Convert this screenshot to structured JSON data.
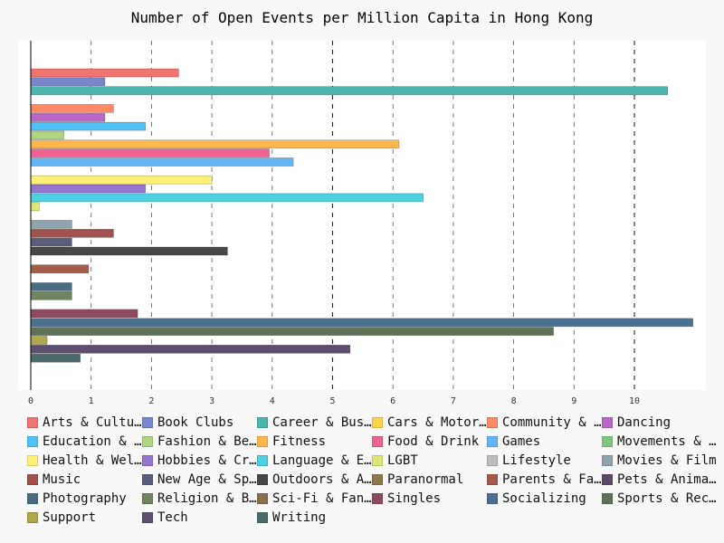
{
  "chart_data": {
    "type": "bar",
    "orientation": "horizontal",
    "title": "Number of Open Events per Million Capita in Hong Kong",
    "xlabel": "",
    "ylabel": "",
    "xlim": [
      0,
      11
    ],
    "xticks": [
      0,
      1,
      2,
      3,
      4,
      5,
      6,
      7,
      8,
      9,
      10
    ],
    "grid": "x-dashed",
    "legend_position": "bottom",
    "series": [
      {
        "name": "Arts & Cultu…",
        "color": "#f07470",
        "value": 2.45
      },
      {
        "name": "Book Clubs",
        "color": "#7986cb",
        "value": 1.23
      },
      {
        "name": "Career & Bus…",
        "color": "#4db6ac",
        "value": 10.55
      },
      {
        "name": "Cars & Motor…",
        "color": "#fdd24c",
        "value": null
      },
      {
        "name": "Community & …",
        "color": "#ff8a65",
        "value": 1.37
      },
      {
        "name": "Dancing",
        "color": "#ba68c8",
        "value": 1.23
      },
      {
        "name": "Education & …",
        "color": "#4fc3f7",
        "value": 1.9
      },
      {
        "name": "Fashion & Be…",
        "color": "#aed581",
        "value": 0.55
      },
      {
        "name": "Fitness",
        "color": "#ffb74d",
        "value": 6.1
      },
      {
        "name": "Food & Drink",
        "color": "#f06292",
        "value": 3.95
      },
      {
        "name": "Games",
        "color": "#64b5f6",
        "value": 4.35
      },
      {
        "name": "Movements & …",
        "color": "#81c784",
        "value": null
      },
      {
        "name": "Health & Wel…",
        "color": "#fff176",
        "value": 3.0
      },
      {
        "name": "Hobbies & Cr…",
        "color": "#9575cd",
        "value": 1.9
      },
      {
        "name": "Language & E…",
        "color": "#4dd0e1",
        "value": 6.5
      },
      {
        "name": "LGBT",
        "color": "#dce775",
        "value": 0.14
      },
      {
        "name": "Lifestyle",
        "color": "#bdbdbd",
        "value": null
      },
      {
        "name": "Movies & Film",
        "color": "#90a4ae",
        "value": 0.68
      },
      {
        "name": "Music",
        "color": "#a1524e",
        "value": 1.37
      },
      {
        "name": "New Age & Sp…",
        "color": "#5b5f7b",
        "value": 0.68
      },
      {
        "name": "Outdoors & A…",
        "color": "#484848",
        "value": 3.26
      },
      {
        "name": "Paranormal",
        "color": "#8c7a4c",
        "value": null
      },
      {
        "name": "Parents & Fa…",
        "color": "#a55c48",
        "value": 0.96
      },
      {
        "name": "Pets & Anima…",
        "color": "#5e4a68",
        "value": null
      },
      {
        "name": "Photography",
        "color": "#4a6c82",
        "value": 0.68
      },
      {
        "name": "Religion & B…",
        "color": "#708460",
        "value": 0.68
      },
      {
        "name": "Sci-Fi & Fan…",
        "color": "#8a6e50",
        "value": null
      },
      {
        "name": "Singles",
        "color": "#8e4a60",
        "value": 1.77
      },
      {
        "name": "Socializing",
        "color": "#4c7090",
        "value": 10.97
      },
      {
        "name": "Sports & Rec…",
        "color": "#5e7258",
        "value": 8.66
      },
      {
        "name": "Support",
        "color": "#aea84a",
        "value": 0.27
      },
      {
        "name": "Tech",
        "color": "#5e4e72",
        "value": 5.29
      },
      {
        "name": "Writing",
        "color": "#4a6a6c",
        "value": 0.82
      }
    ]
  }
}
